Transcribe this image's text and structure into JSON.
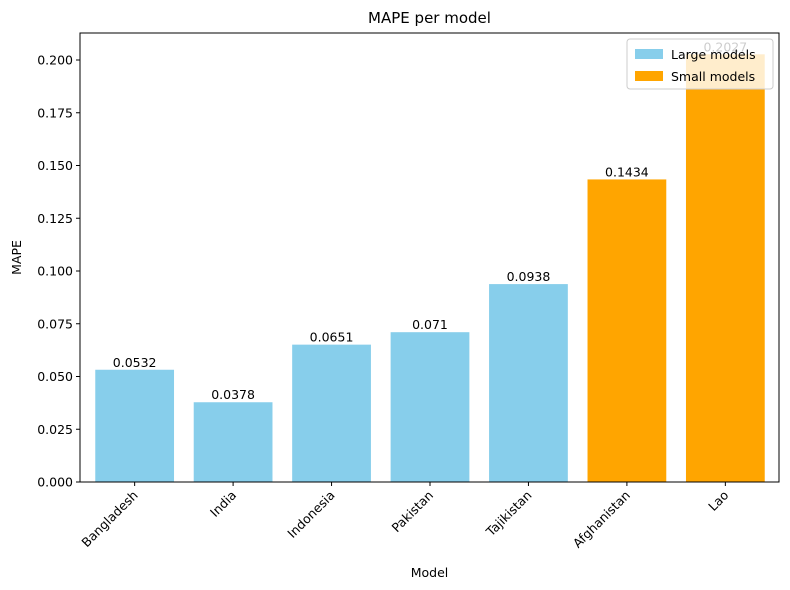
{
  "chart_data": {
    "type": "bar",
    "title": "MAPE per model",
    "xlabel": "Model",
    "ylabel": "MAPE",
    "categories": [
      "Bangladesh",
      "India",
      "Indonesia",
      "Pakistan",
      "Tajikistan",
      "Afghanistan",
      "Lao"
    ],
    "values": [
      0.0532,
      0.0378,
      0.0651,
      0.071,
      0.0938,
      0.1434,
      0.2027
    ],
    "value_labels": [
      "0.0532",
      "0.0378",
      "0.0651",
      "0.071",
      "0.0938",
      "0.1434",
      "0.2027"
    ],
    "groups": [
      "Large models",
      "Large models",
      "Large models",
      "Large models",
      "Large models",
      "Small models",
      "Small models"
    ],
    "legend": [
      {
        "name": "Large models",
        "color": "#87ceeb"
      },
      {
        "name": "Small models",
        "color": "#ffa500"
      }
    ],
    "legend_position": "top-right",
    "ylim": [
      0,
      0.2128
    ],
    "yticks": [
      "0.000",
      "0.025",
      "0.050",
      "0.075",
      "0.100",
      "0.125",
      "0.150",
      "0.175",
      "0.200"
    ],
    "grid": false,
    "xtick_rotation": 45
  }
}
